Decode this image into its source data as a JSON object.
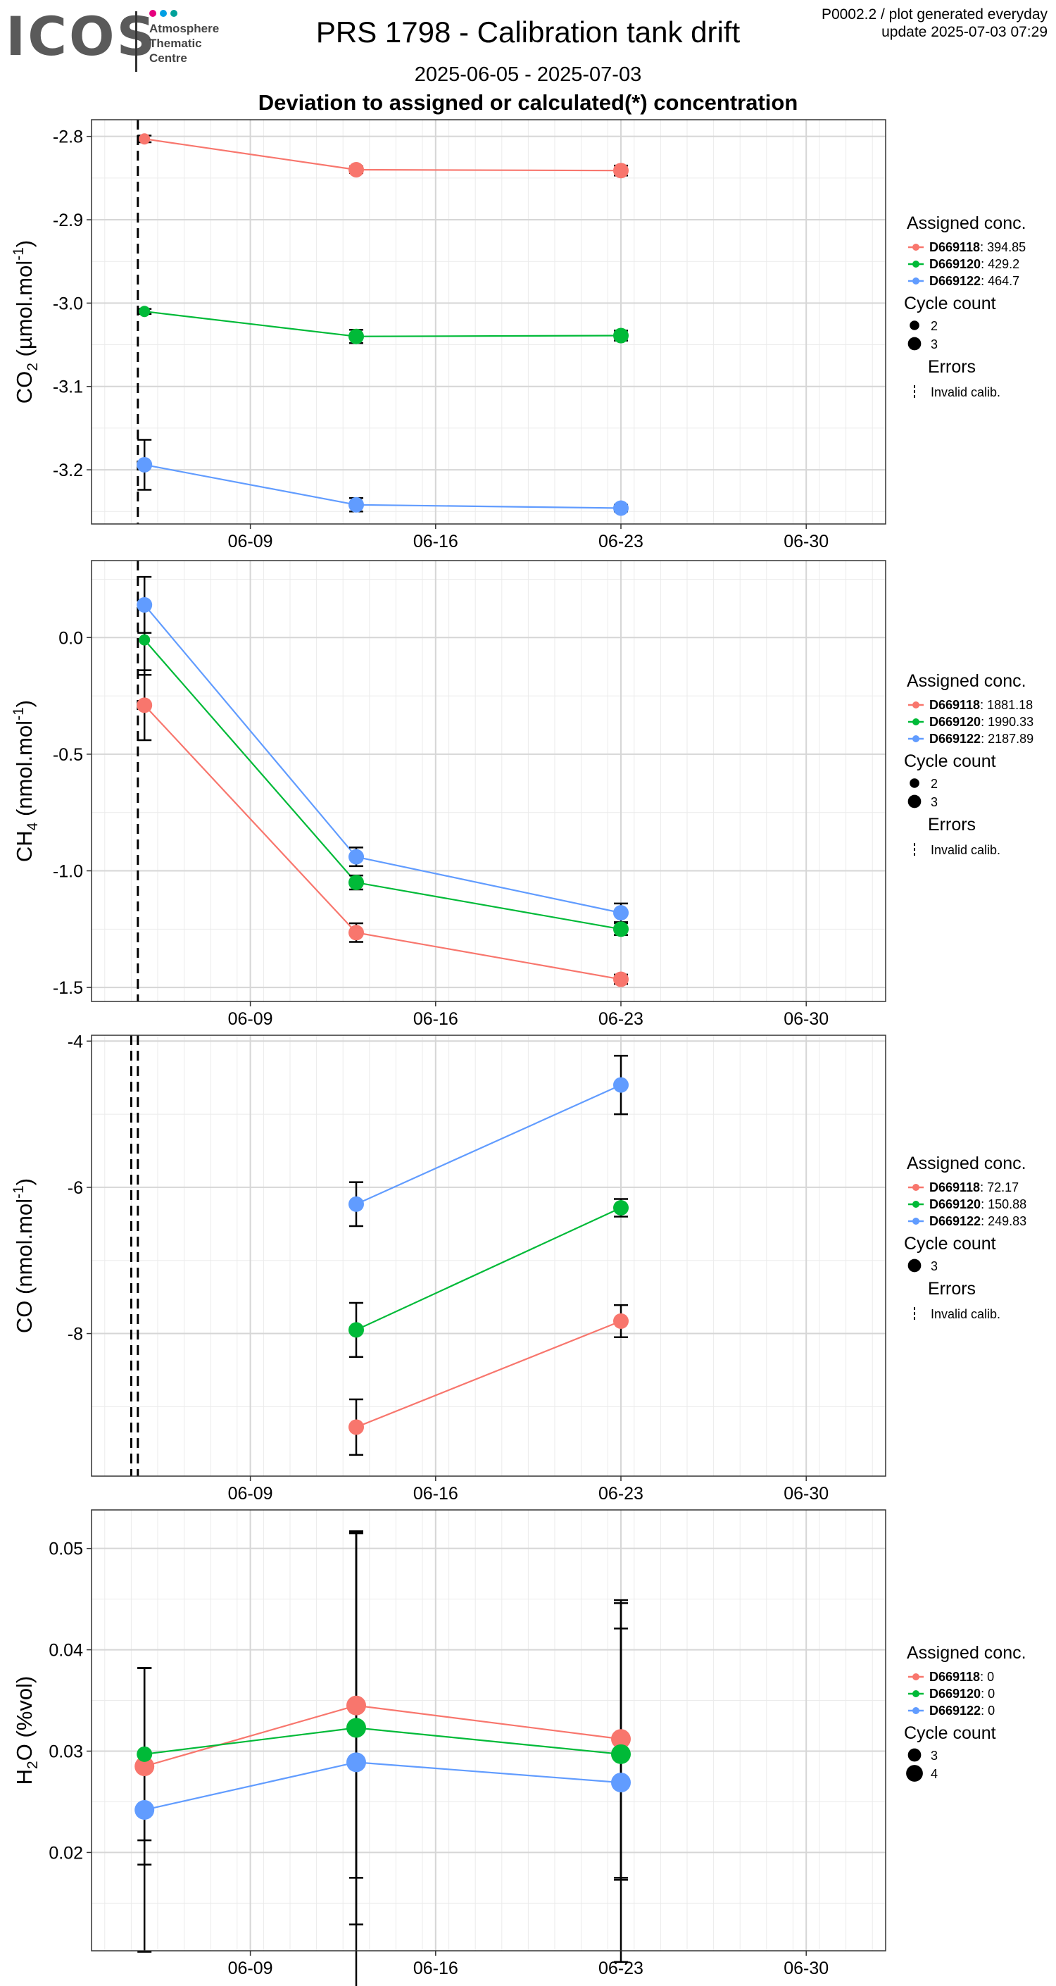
{
  "header": {
    "logo_text": "ICOS",
    "logo_sub": [
      "Atmosphere",
      "Thematic",
      "Centre"
    ],
    "title": "PRS 1798 - Calibration tank drift",
    "date_range": "2025-06-05 - 2025-07-03",
    "subtitle": "Deviation to assigned or calculated(*) concentration",
    "meta_line1": "P0002.2 / plot generated everyday",
    "meta_line2": "update  2025-07-03 07:29"
  },
  "colors": {
    "D669118": "#F8766D",
    "D669120": "#00BA38",
    "D669122": "#619CFF",
    "logo_dots": [
      "#e6007e",
      "#009fe3",
      "#00a19a"
    ]
  },
  "chart_data": [
    {
      "type": "line",
      "ylabel": "CO2 (µmol.mol-1)",
      "ylabel_parts": {
        "pre": "CO",
        "sub": "2",
        "mid": " (µmol.mol",
        "sup": "-1",
        "post": ")"
      },
      "x_ticks": [
        "06-09",
        "06-16",
        "06-23",
        "06-30"
      ],
      "y_ticks": [
        -2.8,
        -2.9,
        -3.0,
        -3.1,
        -3.2
      ],
      "y_tick_labels": [
        "-2.8",
        "-2.9",
        "-3.0",
        "-3.1",
        "-3.2"
      ],
      "ylim": [
        -3.265,
        -2.78
      ],
      "vlines": [
        "2025-06-05 06:00"
      ],
      "series": [
        {
          "name": "D669118",
          "assigned": "394.85",
          "points": [
            {
              "x": "2025-06-05",
              "y": -2.803,
              "err": 0.004,
              "n": 2
            },
            {
              "x": "2025-06-13",
              "y": -2.84,
              "err": 0.004,
              "n": 3
            },
            {
              "x": "2025-06-23",
              "y": -2.841,
              "err": 0.006,
              "n": 3
            }
          ]
        },
        {
          "name": "D669120",
          "assigned": "429.2",
          "points": [
            {
              "x": "2025-06-05",
              "y": -3.01,
              "err": 0.003,
              "n": 2
            },
            {
              "x": "2025-06-13",
              "y": -3.04,
              "err": 0.008,
              "n": 3
            },
            {
              "x": "2025-06-23",
              "y": -3.039,
              "err": 0.006,
              "n": 3
            }
          ]
        },
        {
          "name": "D669122",
          "assigned": "464.7",
          "points": [
            {
              "x": "2025-06-05",
              "y": -3.194,
              "err": 0.03,
              "n": 3
            },
            {
              "x": "2025-06-13",
              "y": -3.242,
              "err": 0.008,
              "n": 3
            },
            {
              "x": "2025-06-23",
              "y": -3.246,
              "err": 0.004,
              "n": 3
            }
          ]
        }
      ],
      "cycle_counts": [
        2,
        3
      ],
      "legend": {
        "assigned_title": "Assigned conc.",
        "cycle_title": "Cycle count",
        "errors_title": "Errors",
        "errors_item": "Invalid calib."
      }
    },
    {
      "type": "line",
      "ylabel": "CH4 (nmol.mol-1)",
      "ylabel_parts": {
        "pre": "CH",
        "sub": "4",
        "mid": " (nmol.mol",
        "sup": "-1",
        "post": ")"
      },
      "x_ticks": [
        "06-09",
        "06-16",
        "06-23",
        "06-30"
      ],
      "y_ticks": [
        0.0,
        -0.5,
        -1.0,
        -1.5
      ],
      "y_tick_labels": [
        "0.0",
        "-0.5",
        "-1.0",
        "-1.5"
      ],
      "ylim": [
        -1.56,
        0.33
      ],
      "vlines": [
        "2025-06-05 06:00"
      ],
      "series": [
        {
          "name": "D669118",
          "assigned": "1881.18",
          "points": [
            {
              "x": "2025-06-05",
              "y": -0.29,
              "err": 0.15,
              "n": 3
            },
            {
              "x": "2025-06-13",
              "y": -1.265,
              "err": 0.04,
              "n": 3
            },
            {
              "x": "2025-06-23",
              "y": -1.465,
              "err": 0.02,
              "n": 3
            }
          ]
        },
        {
          "name": "D669120",
          "assigned": "1990.33",
          "points": [
            {
              "x": "2025-06-05",
              "y": -0.01,
              "err": 0.15,
              "n": 2
            },
            {
              "x": "2025-06-13",
              "y": -1.05,
              "err": 0.03,
              "n": 3
            },
            {
              "x": "2025-06-23",
              "y": -1.25,
              "err": 0.025,
              "n": 3
            }
          ]
        },
        {
          "name": "D669122",
          "assigned": "2187.89",
          "points": [
            {
              "x": "2025-06-05",
              "y": 0.14,
              "err": 0.12,
              "n": 3
            },
            {
              "x": "2025-06-13",
              "y": -0.94,
              "err": 0.04,
              "n": 3
            },
            {
              "x": "2025-06-23",
              "y": -1.18,
              "err": 0.04,
              "n": 3
            }
          ]
        }
      ],
      "cycle_counts": [
        2,
        3
      ],
      "legend": {
        "assigned_title": "Assigned conc.",
        "cycle_title": "Cycle count",
        "errors_title": "Errors",
        "errors_item": "Invalid calib."
      }
    },
    {
      "type": "line",
      "ylabel": "CO (nmol.mol-1)",
      "ylabel_parts": {
        "pre": "CO",
        "sub": "",
        "mid": " (nmol.mol",
        "sup": "-1",
        "post": ")"
      },
      "x_ticks": [
        "06-09",
        "06-16",
        "06-23",
        "06-30"
      ],
      "y_ticks": [
        -4,
        -6,
        -8
      ],
      "y_tick_labels": [
        "-4",
        "-6",
        "-8"
      ],
      "ylim": [
        -9.95,
        -3.92
      ],
      "vlines": [
        "2025-06-05 00:00",
        "2025-06-05 06:00"
      ],
      "series": [
        {
          "name": "D669118",
          "assigned": "72.17",
          "points": [
            {
              "x": "2025-06-13",
              "y": -9.28,
              "err": 0.38,
              "n": 3
            },
            {
              "x": "2025-06-23",
              "y": -7.83,
              "err": 0.22,
              "n": 3
            }
          ]
        },
        {
          "name": "D669120",
          "assigned": "150.88",
          "points": [
            {
              "x": "2025-06-13",
              "y": -7.95,
              "err": 0.37,
              "n": 3
            },
            {
              "x": "2025-06-23",
              "y": -6.28,
              "err": 0.12,
              "n": 3
            }
          ]
        },
        {
          "name": "D669122",
          "assigned": "249.83",
          "points": [
            {
              "x": "2025-06-13",
              "y": -6.23,
              "err": 0.3,
              "n": 3
            },
            {
              "x": "2025-06-23",
              "y": -4.6,
              "err": 0.4,
              "n": 3
            }
          ]
        }
      ],
      "cycle_counts": [
        3
      ],
      "legend": {
        "assigned_title": "Assigned conc.",
        "cycle_title": "Cycle count",
        "errors_title": "Errors",
        "errors_item": "Invalid calib."
      }
    },
    {
      "type": "line",
      "ylabel": "H2O (%vol)",
      "ylabel_parts": {
        "pre": "H",
        "sub": "2",
        "mid": "O (%vol)",
        "sup": "",
        "post": ""
      },
      "x_ticks": [
        "06-09",
        "06-16",
        "06-23",
        "06-30"
      ],
      "y_ticks": [
        0.05,
        0.04,
        0.03,
        0.02
      ],
      "y_tick_labels": [
        "0.05",
        "0.04",
        "0.03",
        "0.02"
      ],
      "ylim": [
        0.0103,
        0.0538
      ],
      "vlines": [],
      "series": [
        {
          "name": "D669118",
          "assigned": "0",
          "points": [
            {
              "x": "2025-06-05",
              "y": 0.0285,
              "err": 0.0097,
              "n": 4
            },
            {
              "x": "2025-06-13",
              "y": 0.0345,
              "err": 0.017,
              "n": 4
            },
            {
              "x": "2025-06-23",
              "y": 0.0312,
              "err": 0.0137,
              "n": 4
            }
          ]
        },
        {
          "name": "D669120",
          "assigned": "0",
          "points": [
            {
              "x": "2025-06-05",
              "y": 0.0297,
              "err": 0.0085,
              "n": 3
            },
            {
              "x": "2025-06-13",
              "y": 0.0323,
              "err": 0.0194,
              "n": 4
            },
            {
              "x": "2025-06-23",
              "y": 0.0297,
              "err": 0.0124,
              "n": 4
            }
          ]
        },
        {
          "name": "D669122",
          "assigned": "0",
          "points": [
            {
              "x": "2025-06-05",
              "y": 0.0242,
              "err": 0.014,
              "n": 4
            },
            {
              "x": "2025-06-13",
              "y": 0.0289,
              "err": 0.0227,
              "n": 4
            },
            {
              "x": "2025-06-23",
              "y": 0.0269,
              "err": 0.0177,
              "n": 4
            }
          ]
        }
      ],
      "cycle_counts": [
        3,
        4
      ],
      "legend": {
        "assigned_title": "Assigned conc.",
        "cycle_title": "Cycle count",
        "errors_title": "",
        "errors_item": ""
      }
    }
  ]
}
